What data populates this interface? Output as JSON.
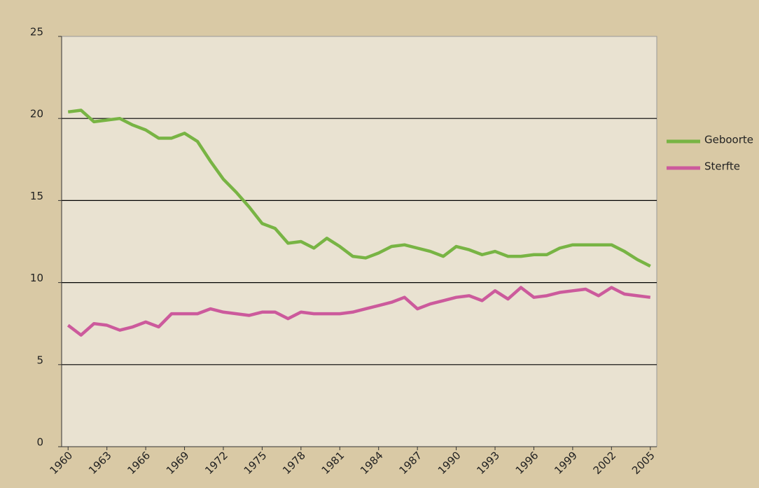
{
  "chart_data": {
    "type": "line",
    "x": [
      1960,
      1961,
      1962,
      1963,
      1964,
      1965,
      1966,
      1967,
      1968,
      1969,
      1970,
      1971,
      1972,
      1973,
      1974,
      1975,
      1976,
      1977,
      1978,
      1979,
      1980,
      1981,
      1982,
      1983,
      1984,
      1985,
      1986,
      1987,
      1988,
      1989,
      1990,
      1991,
      1992,
      1993,
      1994,
      1995,
      1996,
      1997,
      1998,
      1999,
      2000,
      2001,
      2002,
      2003,
      2004,
      2005
    ],
    "series": [
      {
        "name": "Geboorte",
        "color": "#78b444",
        "values": [
          20.4,
          20.5,
          19.8,
          19.9,
          20.0,
          19.6,
          19.3,
          18.8,
          18.8,
          19.1,
          18.6,
          17.4,
          16.3,
          15.5,
          14.6,
          13.6,
          13.3,
          12.4,
          12.5,
          12.1,
          12.7,
          12.2,
          11.6,
          11.5,
          11.8,
          12.2,
          12.3,
          12.1,
          11.9,
          11.6,
          12.2,
          12.0,
          11.7,
          11.9,
          11.6,
          11.6,
          11.7,
          11.7,
          12.1,
          12.3,
          12.3,
          12.3,
          12.3,
          11.9,
          11.4,
          11.0
        ]
      },
      {
        "name": "Sterfte",
        "color": "#cc5a9c",
        "values": [
          7.4,
          6.8,
          7.5,
          7.4,
          7.1,
          7.3,
          7.6,
          7.3,
          8.1,
          8.1,
          8.1,
          8.4,
          8.2,
          8.1,
          8.0,
          8.2,
          8.2,
          7.8,
          8.2,
          8.1,
          8.1,
          8.1,
          8.2,
          8.4,
          8.6,
          8.8,
          9.1,
          8.4,
          8.7,
          8.9,
          9.1,
          9.2,
          8.9,
          9.5,
          9.0,
          9.7,
          9.1,
          9.2,
          9.4,
          9.5,
          9.6,
          9.2,
          9.7,
          9.3,
          9.2,
          9.1
        ]
      }
    ],
    "xlim": [
      1959.5,
      2005.5
    ],
    "xticks": [
      1960,
      1963,
      1966,
      1969,
      1972,
      1975,
      1978,
      1981,
      1984,
      1987,
      1990,
      1993,
      1996,
      1999,
      2002,
      2005
    ],
    "ylim": [
      0,
      25
    ],
    "yticks": [
      0,
      5,
      10,
      15,
      20,
      25
    ],
    "grid": true,
    "legend": "right"
  }
}
